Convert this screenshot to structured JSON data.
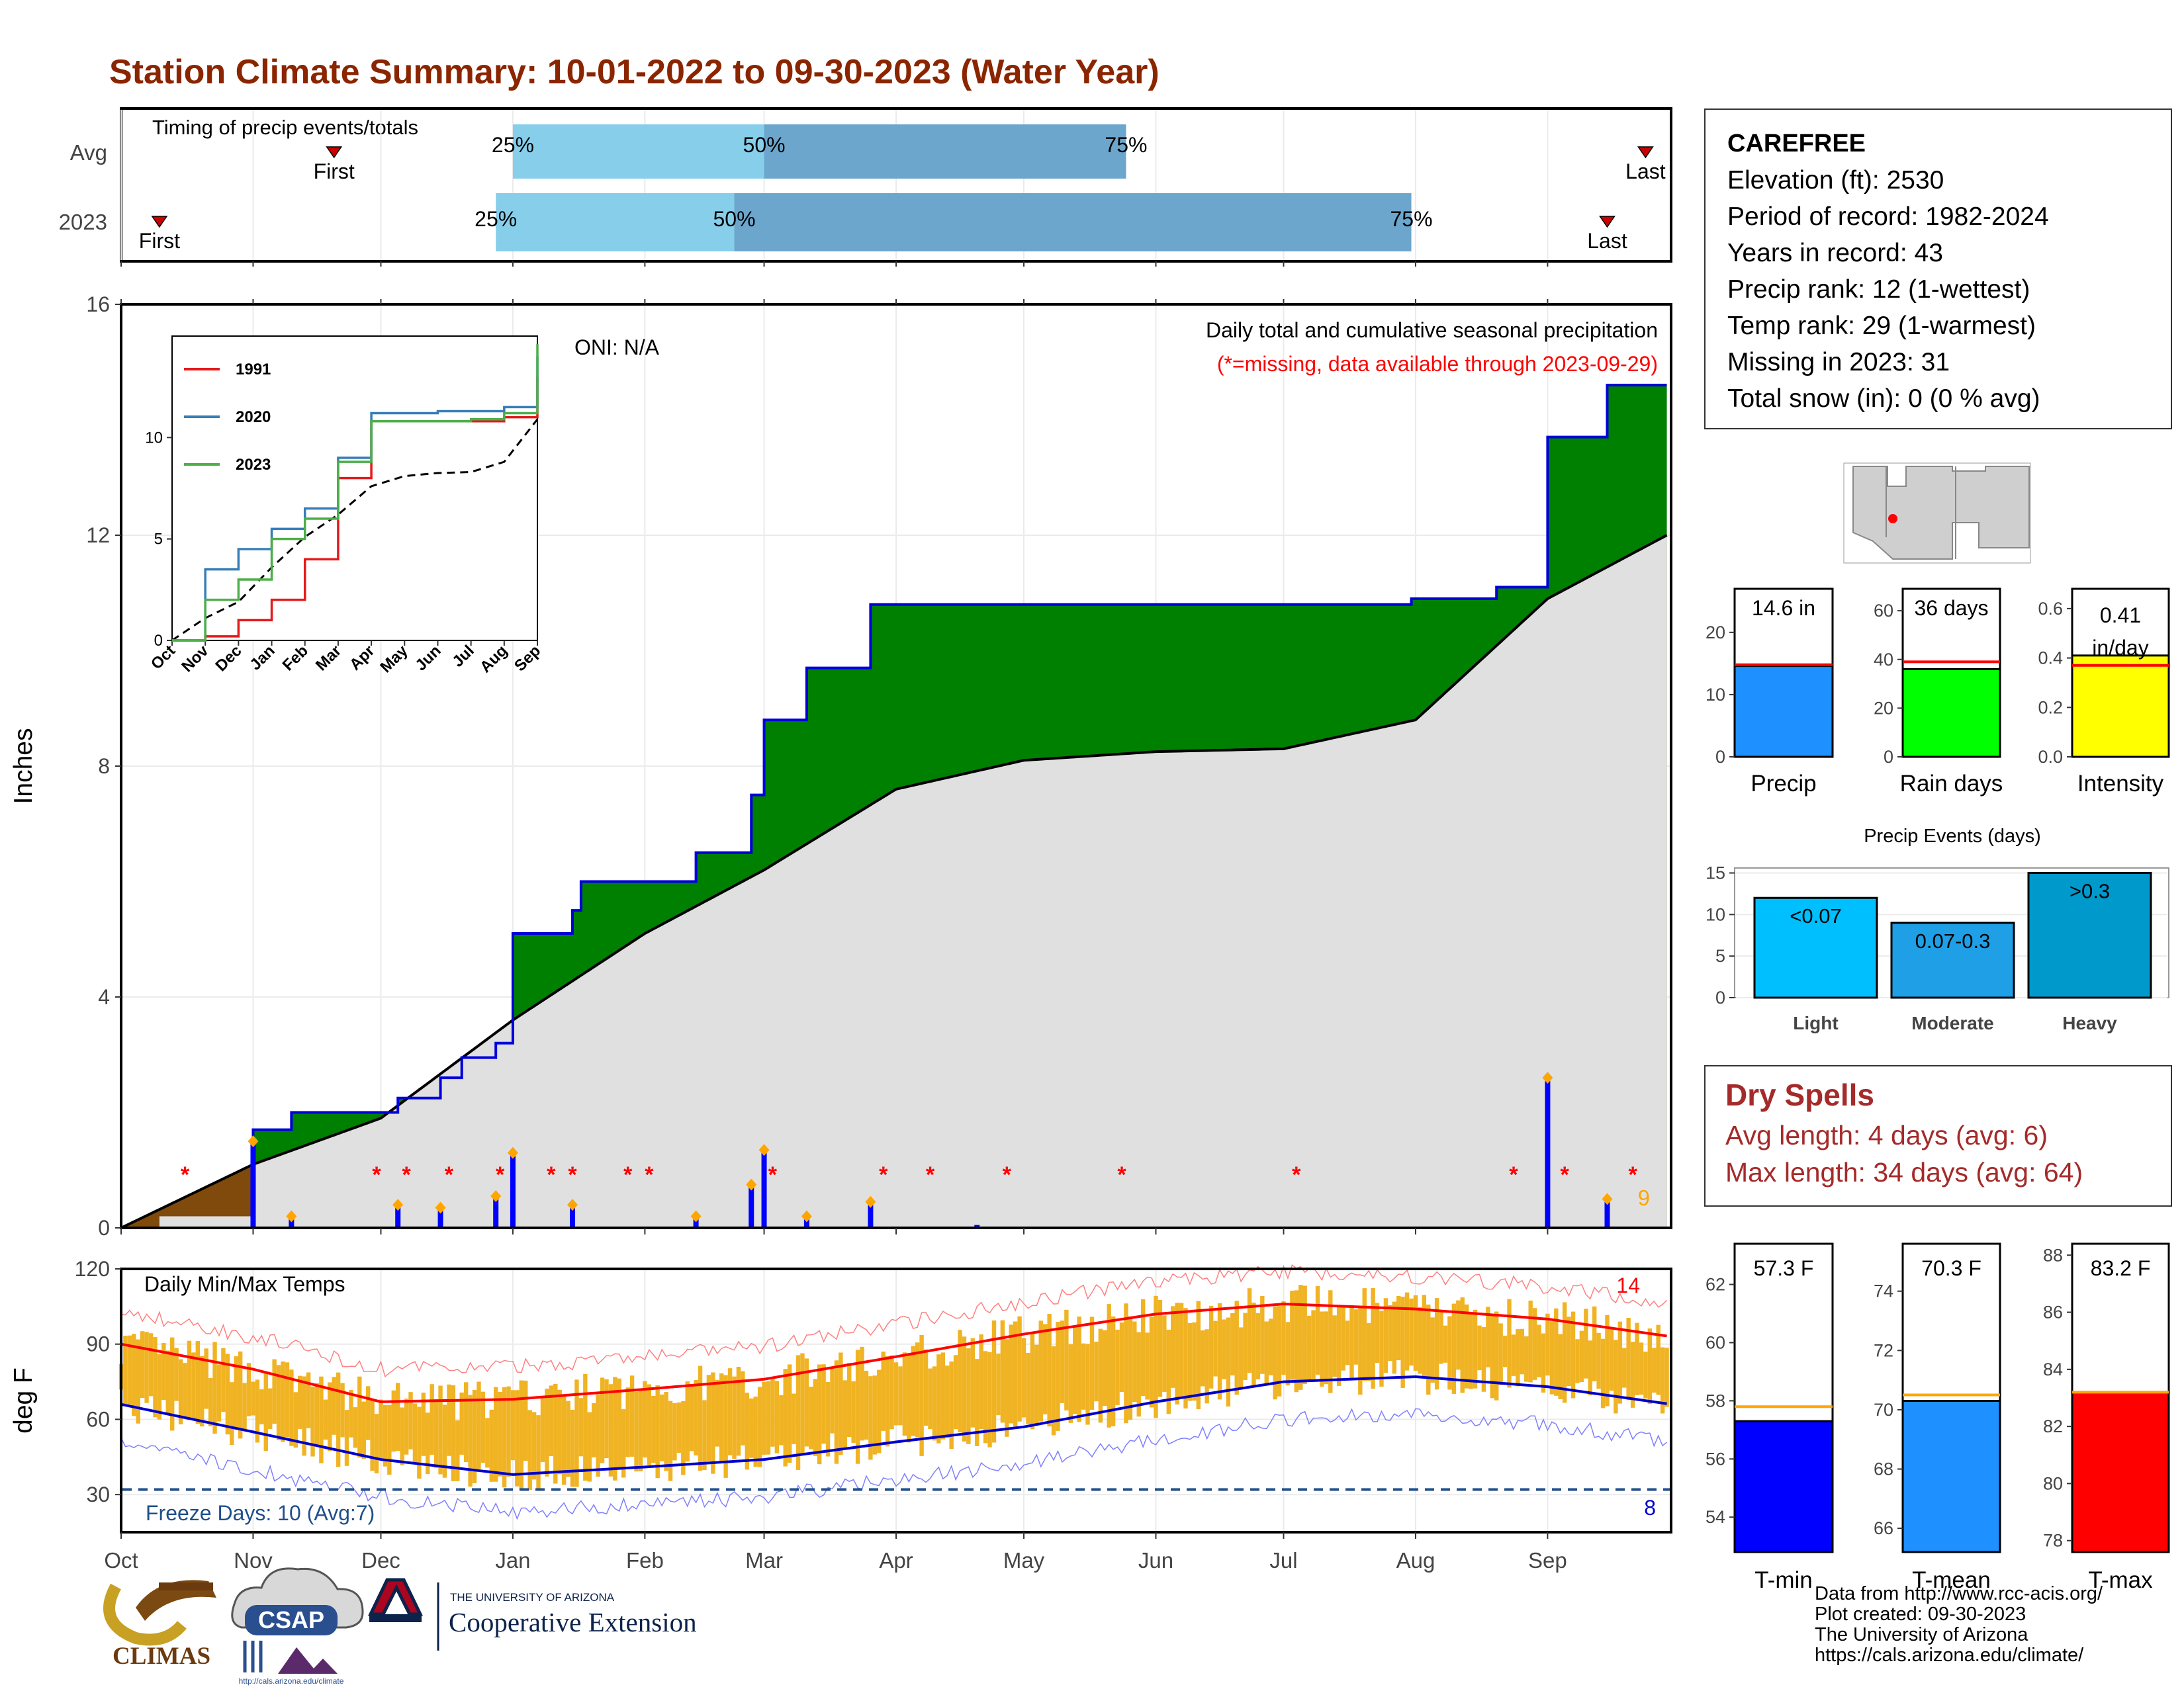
{
  "title": "Station Climate Summary: 10-01-2022 to 09-30-2023 (Water Year)",
  "colors": {
    "title": "#8b2500",
    "precip_green": "#008000",
    "precip_brown": "#7f4a0b",
    "cum_avg_fill": "#e0e0e0",
    "daily_bar": "#0000ff",
    "tmax_avg_line": "#ff0000",
    "tmin_avg_line": "#0000cc",
    "temp_bar": "#f0b323",
    "missing": "#ff0000",
    "timing_light": "#87ceeb",
    "timing_dark": "#6ca6cd",
    "dry_spell": "#a52a2a",
    "inset_1991": "#e41a1c",
    "inset_2020": "#377eb8",
    "inset_2023": "#4daf4a"
  },
  "timing": {
    "heading": "Timing of precip events/totals",
    "rows": [
      {
        "label": "Avg",
        "first": "First",
        "last": "Last",
        "p25": "25%",
        "p50": "50%",
        "p75": "75%"
      },
      {
        "label": "2023",
        "first": "First",
        "last": "Last",
        "p25": "25%",
        "p50": "50%",
        "p75": "75%"
      }
    ],
    "month_labels": [
      "Oct",
      "Nov",
      "Dec",
      "Jan",
      "Feb",
      "Mar",
      "Apr",
      "May",
      "Jun",
      "Jul",
      "Aug",
      "Sep"
    ]
  },
  "precip_panel": {
    "ylabel": "Inches",
    "yticks": [
      "0",
      "4",
      "8",
      "12",
      "16"
    ],
    "note": "Daily total and cumulative seasonal precipitation",
    "missing_note": "(*=missing, data available through 2023-09-29)",
    "oni": "ONI: N/A",
    "missing_marker": "*",
    "days_count": "9"
  },
  "temp_panel": {
    "ylabel": "deg F",
    "yticks": [
      "30",
      "60",
      "90",
      "120"
    ],
    "heading": "Daily Min/Max Temps",
    "freeze": "Freeze Days: 10 (Avg:7)",
    "hot_count": "14",
    "cold_count": "8",
    "xticks": [
      "Oct",
      "Nov",
      "Dec",
      "Jan",
      "Feb",
      "Mar",
      "Apr",
      "May",
      "Jun",
      "Jul",
      "Aug",
      "Sep"
    ]
  },
  "inset": {
    "legend": [
      "1991",
      "2020",
      "2023"
    ],
    "yticks": [
      "0",
      "5",
      "10"
    ],
    "xticks": [
      "Oct",
      "Nov",
      "Dec",
      "Jan",
      "Feb",
      "Mar",
      "Apr",
      "May",
      "Jun",
      "Jul",
      "Aug",
      "Sep"
    ]
  },
  "station": {
    "name": "CAREFREE",
    "elevation": "Elevation (ft): 2530",
    "period": "Period of record: 1982-2024",
    "years": "Years in record: 43",
    "precip_rank": "Precip rank: 12 (1-wettest)",
    "temp_rank": "Temp rank: 29 (1-warmest)",
    "missing": "Missing in 2023: 31",
    "snow": "Total snow (in): 0 (0 % avg)"
  },
  "mini_bars": [
    {
      "value_label": "14.6 in",
      "label": "Precip",
      "yticks": [
        "0",
        "10",
        "20"
      ]
    },
    {
      "value_label": "36 days",
      "label": "Rain days",
      "yticks": [
        "0",
        "20",
        "40",
        "60"
      ]
    },
    {
      "value_label": "0.41",
      "value_unit": "in/day",
      "label": "Intensity",
      "yticks": [
        "0.0",
        "0.2",
        "0.4",
        "0.6"
      ]
    }
  ],
  "events": {
    "title": "Precip Events (days)",
    "yticks": [
      "0",
      "5",
      "10",
      "15"
    ],
    "bars": [
      {
        "label": "Light",
        "range": "<0.07"
      },
      {
        "label": "Moderate",
        "range": "0.07-0.3"
      },
      {
        "label": "Heavy",
        "range": ">0.3"
      }
    ]
  },
  "dry_spells": {
    "title": "Dry Spells",
    "avg": "Avg length: 4 days (avg: 6)",
    "max": "Max length: 34 days (avg: 64)"
  },
  "temp_bars": [
    {
      "value_label": "57.3 F",
      "label": "T-min",
      "yticks": [
        "54",
        "56",
        "58",
        "60",
        "62"
      ]
    },
    {
      "value_label": "70.3 F",
      "label": "T-mean",
      "yticks": [
        "66",
        "68",
        "70",
        "72",
        "74"
      ]
    },
    {
      "value_label": "83.2 F",
      "label": "T-max",
      "yticks": [
        "78",
        "80",
        "82",
        "84",
        "86",
        "88"
      ]
    }
  ],
  "logos": {
    "climas": "CLIMAS",
    "csap": "CSAP",
    "csap_url": "http://cals.arizona.edu/climate",
    "ua_small": "THE UNIVERSITY OF ARIZONA",
    "ua_big": "Cooperative Extension"
  },
  "footer": {
    "line1": "Data from http://www.rcc-acis.org/",
    "line2": "Plot created: 09-30-2023",
    "line3": "The University of Arizona",
    "line4": "https://cals.arizona.edu/climate/"
  },
  "chart_data": [
    {
      "type": "bar",
      "title": "Timing of precip events/totals",
      "categories": [
        "Avg",
        "2023"
      ],
      "series": [
        {
          "name": "First",
          "values": [
            "Nov 20",
            "Oct 10"
          ]
        },
        {
          "name": "25%",
          "values": [
            "Jan 1",
            "Dec 28"
          ]
        },
        {
          "name": "50%",
          "values": [
            "Mar 1",
            "Feb 22"
          ]
        },
        {
          "name": "75%",
          "values": [
            "May 25",
            "Jul 31"
          ]
        },
        {
          "name": "Last",
          "values": [
            "Sep 24",
            "Sep 15"
          ]
        }
      ]
    },
    {
      "type": "area",
      "title": "Daily total and cumulative seasonal precipitation",
      "ylabel": "Inches",
      "ylim": [
        0,
        16
      ],
      "cumulative_2023": [
        [
          "2022-10-01",
          0
        ],
        [
          "2022-11-01",
          1.7
        ],
        [
          "2022-11-10",
          2.0
        ],
        [
          "2022-12-01",
          2.0
        ],
        [
          "2022-12-05",
          2.25
        ],
        [
          "2022-12-15",
          2.6
        ],
        [
          "2022-12-20",
          2.95
        ],
        [
          "2022-12-28",
          3.2
        ],
        [
          "2023-01-01",
          5.1
        ],
        [
          "2023-01-15",
          5.5
        ],
        [
          "2023-01-17",
          6.0
        ],
        [
          "2023-02-08",
          6.0
        ],
        [
          "2023-02-13",
          6.5
        ],
        [
          "2023-02-26",
          7.5
        ],
        [
          "2023-03-01",
          8.8
        ],
        [
          "2023-03-11",
          9.7
        ],
        [
          "2023-03-26",
          10.8
        ],
        [
          "2023-04-20",
          10.8
        ],
        [
          "2023-05-01",
          10.8
        ],
        [
          "2023-07-31",
          10.9
        ],
        [
          "2023-08-20",
          11.1
        ],
        [
          "2023-09-01",
          13.7
        ],
        [
          "2023-09-15",
          14.6
        ],
        [
          "2023-09-29",
          14.6
        ]
      ],
      "cumulative_avg": [
        [
          "2022-10-01",
          0
        ],
        [
          "2022-11-01",
          1.1
        ],
        [
          "2022-12-01",
          1.9
        ],
        [
          "2023-01-01",
          3.6
        ],
        [
          "2023-02-01",
          5.1
        ],
        [
          "2023-03-01",
          6.2
        ],
        [
          "2023-04-01",
          7.6
        ],
        [
          "2023-05-01",
          8.1
        ],
        [
          "2023-06-01",
          8.25
        ],
        [
          "2023-07-01",
          8.3
        ],
        [
          "2023-08-01",
          8.8
        ],
        [
          "2023-09-01",
          10.9
        ],
        [
          "2023-09-29",
          12.0
        ]
      ],
      "daily_precip": [
        [
          "2022-11-01",
          1.5
        ],
        [
          "2022-11-10",
          0.2
        ],
        [
          "2022-12-05",
          0.4
        ],
        [
          "2022-12-15",
          0.35
        ],
        [
          "2022-12-28",
          0.55
        ],
        [
          "2023-01-01",
          1.3
        ],
        [
          "2023-01-15",
          0.4
        ],
        [
          "2023-02-13",
          0.2
        ],
        [
          "2023-02-26",
          0.75
        ],
        [
          "2023-03-01",
          1.35
        ],
        [
          "2023-03-11",
          0.2
        ],
        [
          "2023-03-26",
          0.45
        ],
        [
          "2023-04-20",
          0.05
        ],
        [
          "2023-09-01",
          2.6
        ],
        [
          "2023-09-15",
          0.5
        ]
      ],
      "missing_dates": [
        "2022-10-16",
        "2022-11-30",
        "2022-12-07",
        "2022-12-17",
        "2022-12-29",
        "2023-01-10",
        "2023-01-15",
        "2023-01-28",
        "2023-02-02",
        "2023-03-03",
        "2023-03-29",
        "2023-04-09",
        "2023-04-27",
        "2023-05-24",
        "2023-07-04",
        "2023-08-24",
        "2023-09-05",
        "2023-09-21"
      ]
    },
    {
      "type": "line",
      "title": "Daily Min/Max Temps",
      "ylabel": "deg F",
      "ylim": [
        15,
        120
      ],
      "freeze_line": 32,
      "tmax_avg": [
        [
          "2022-10-01",
          90
        ],
        [
          "2022-11-01",
          80
        ],
        [
          "2022-12-01",
          67
        ],
        [
          "2023-01-01",
          68
        ],
        [
          "2023-02-01",
          72
        ],
        [
          "2023-03-01",
          76
        ],
        [
          "2023-04-01",
          85
        ],
        [
          "2023-05-01",
          94
        ],
        [
          "2023-06-01",
          102
        ],
        [
          "2023-07-01",
          106
        ],
        [
          "2023-08-01",
          104
        ],
        [
          "2023-09-01",
          100
        ],
        [
          "2023-09-30",
          93
        ]
      ],
      "tmin_avg": [
        [
          "2022-10-01",
          66
        ],
        [
          "2022-11-01",
          55
        ],
        [
          "2022-12-01",
          44
        ],
        [
          "2023-01-01",
          38
        ],
        [
          "2023-02-01",
          41
        ],
        [
          "2023-03-01",
          44
        ],
        [
          "2023-04-01",
          51
        ],
        [
          "2023-05-01",
          57
        ],
        [
          "2023-06-01",
          67
        ],
        [
          "2023-07-01",
          75
        ],
        [
          "2023-08-01",
          77
        ],
        [
          "2023-09-01",
          73
        ],
        [
          "2023-09-30",
          66
        ]
      ]
    },
    {
      "type": "line",
      "title": "Cumulative precipitation comparison",
      "ylim": [
        0,
        15
      ],
      "series": [
        {
          "name": "1991",
          "values": [
            [
              "Oct",
              0
            ],
            [
              "Nov",
              0.2
            ],
            [
              "Dec",
              1
            ],
            [
              "Jan",
              2
            ],
            [
              "Feb",
              4
            ],
            [
              "Mar",
              8
            ],
            [
              "Apr",
              10.8
            ],
            [
              "May",
              10.8
            ],
            [
              "Jun",
              10.8
            ],
            [
              "Jul",
              10.8
            ],
            [
              "Aug",
              11
            ],
            [
              "Sep",
              13
            ]
          ]
        },
        {
          "name": "2020",
          "values": [
            [
              "Oct",
              0
            ],
            [
              "Nov",
              3.5
            ],
            [
              "Dec",
              4.5
            ],
            [
              "Jan",
              5.5
            ],
            [
              "Feb",
              6.5
            ],
            [
              "Mar",
              9
            ],
            [
              "Apr",
              11.2
            ],
            [
              "May",
              11.2
            ],
            [
              "Jun",
              11.3
            ],
            [
              "Jul",
              11.3
            ],
            [
              "Aug",
              11.5
            ],
            [
              "Sep",
              14
            ]
          ]
        },
        {
          "name": "2023",
          "values": [
            [
              "Oct",
              0
            ],
            [
              "Nov",
              2
            ],
            [
              "Dec",
              3
            ],
            [
              "Jan",
              5
            ],
            [
              "Feb",
              6
            ],
            [
              "Mar",
              8.8
            ],
            [
              "Apr",
              10.8
            ],
            [
              "May",
              10.8
            ],
            [
              "Jun",
              10.8
            ],
            [
              "Jul",
              10.9
            ],
            [
              "Aug",
              11.2
            ],
            [
              "Sep",
              14.6
            ]
          ]
        }
      ]
    },
    {
      "type": "bar",
      "categories": [
        "Precip",
        "Rain days",
        "Intensity"
      ],
      "values": [
        14.6,
        36,
        0.41
      ],
      "averages": [
        14.8,
        39,
        0.37
      ]
    },
    {
      "type": "bar",
      "title": "Precip Events (days)",
      "categories": [
        "Light",
        "Moderate",
        "Heavy"
      ],
      "values": [
        12,
        9,
        15
      ],
      "ylim": [
        0,
        15
      ]
    },
    {
      "type": "bar",
      "categories": [
        "T-min",
        "T-mean",
        "T-max"
      ],
      "values": [
        57.3,
        70.3,
        83.2
      ],
      "averages": [
        57.8,
        70.5,
        83.2
      ]
    }
  ]
}
